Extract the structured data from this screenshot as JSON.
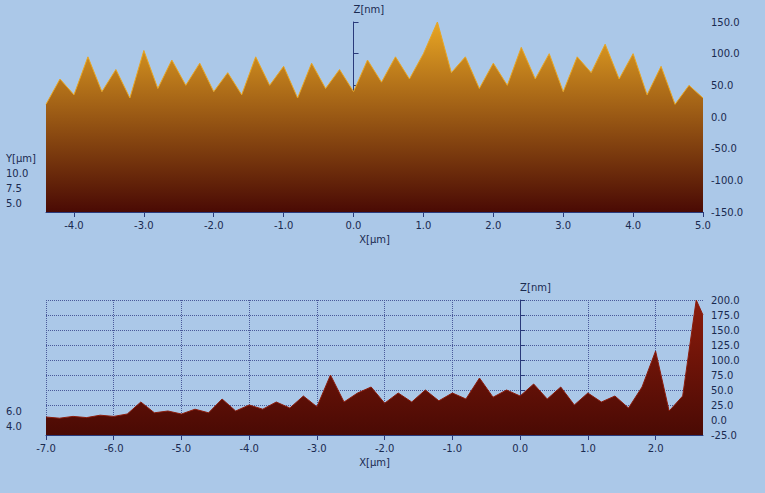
{
  "chart_data": [
    {
      "type": "area",
      "xlabel": "X[µm]",
      "ylabel": "Z[nm]",
      "depth_label": "Y[µm]",
      "depth_ticks": [
        {
          "value": 5,
          "label": "5.0"
        },
        {
          "value": 7.5,
          "label": "7.5"
        },
        {
          "value": 10,
          "label": "10.0"
        }
      ],
      "color": "#e8a624",
      "grid": false,
      "x": [
        -4.4,
        -4.2,
        -4.0,
        -3.8,
        -3.6,
        -3.4,
        -3.2,
        -3.0,
        -2.8,
        -2.6,
        -2.4,
        -2.2,
        -2.0,
        -1.8,
        -1.6,
        -1.4,
        -1.2,
        -1.0,
        -0.8,
        -0.6,
        -0.4,
        -0.2,
        0.0,
        0.2,
        0.4,
        0.6,
        0.8,
        1.0,
        1.2,
        1.4,
        1.6,
        1.8,
        2.0,
        2.2,
        2.4,
        2.6,
        2.8,
        3.0,
        3.2,
        3.4,
        3.6,
        3.8,
        4.0,
        4.2,
        4.4,
        4.6,
        4.8,
        5.0
      ],
      "values": [
        20,
        60,
        35,
        95,
        40,
        75,
        30,
        105,
        45,
        90,
        50,
        85,
        40,
        70,
        35,
        95,
        50,
        80,
        30,
        85,
        45,
        75,
        40,
        90,
        55,
        95,
        60,
        100,
        150,
        70,
        95,
        45,
        85,
        50,
        110,
        60,
        100,
        40,
        95,
        70,
        115,
        60,
        100,
        35,
        80,
        20,
        50,
        30
      ],
      "xlim": [
        -4.4,
        5.0
      ],
      "xticks": [
        {
          "value": -4,
          "label": "-4.0"
        },
        {
          "value": -3,
          "label": "-3.0"
        },
        {
          "value": -2,
          "label": "-2.0"
        },
        {
          "value": -1,
          "label": "-1.0"
        },
        {
          "value": 0,
          "label": "0.0"
        },
        {
          "value": 1,
          "label": "1.0"
        },
        {
          "value": 2,
          "label": "2.0"
        },
        {
          "value": 3,
          "label": "3.0"
        },
        {
          "value": 4,
          "label": "4.0"
        },
        {
          "value": 5,
          "label": "5.0"
        }
      ],
      "ylim": [
        -150,
        150
      ],
      "yticks": [
        {
          "value": -150,
          "label": "-150.0"
        },
        {
          "value": -100,
          "label": "-100.0"
        },
        {
          "value": -50,
          "label": "-50.0"
        },
        {
          "value": 0,
          "label": "0.0"
        },
        {
          "value": 50,
          "label": "50.0"
        },
        {
          "value": 100,
          "label": "100.0"
        },
        {
          "value": 150,
          "label": "150.0"
        }
      ]
    },
    {
      "type": "area",
      "xlabel": "X[µm]",
      "ylabel": "Z[nm]",
      "depth_ticks": [
        {
          "value": 4,
          "label": "4.0"
        },
        {
          "value": 6,
          "label": "6.0"
        }
      ],
      "color": "#8c1c0c",
      "grid": true,
      "x": [
        -7.0,
        -6.8,
        -6.6,
        -6.4,
        -6.2,
        -6.0,
        -5.8,
        -5.6,
        -5.4,
        -5.2,
        -5.0,
        -4.8,
        -4.6,
        -4.4,
        -4.2,
        -4.0,
        -3.8,
        -3.6,
        -3.4,
        -3.2,
        -3.0,
        -2.8,
        -2.6,
        -2.4,
        -2.2,
        -2.0,
        -1.8,
        -1.6,
        -1.4,
        -1.2,
        -1.0,
        -0.8,
        -0.6,
        -0.4,
        -0.2,
        0.0,
        0.2,
        0.4,
        0.6,
        0.8,
        1.0,
        1.2,
        1.4,
        1.6,
        1.8,
        2.0,
        2.2,
        2.4,
        2.6,
        2.7
      ],
      "values": [
        5,
        3,
        6,
        4,
        8,
        6,
        10,
        30,
        12,
        15,
        10,
        18,
        12,
        35,
        15,
        25,
        18,
        30,
        20,
        40,
        22,
        75,
        30,
        45,
        55,
        28,
        45,
        30,
        50,
        32,
        45,
        35,
        70,
        38,
        50,
        40,
        60,
        35,
        55,
        25,
        45,
        30,
        40,
        20,
        55,
        115,
        15,
        40,
        200,
        175
      ],
      "xlim": [
        -7.0,
        2.7
      ],
      "xticks": [
        {
          "value": -7,
          "label": "-7.0"
        },
        {
          "value": -6,
          "label": "-6.0"
        },
        {
          "value": -5,
          "label": "-5.0"
        },
        {
          "value": -4,
          "label": "-4.0"
        },
        {
          "value": -3,
          "label": "-3.0"
        },
        {
          "value": -2,
          "label": "-2.0"
        },
        {
          "value": -1,
          "label": "-1.0"
        },
        {
          "value": 0,
          "label": "0.0"
        },
        {
          "value": 1,
          "label": "1.0"
        },
        {
          "value": 2,
          "label": "2.0"
        }
      ],
      "ylim": [
        -25,
        200
      ],
      "yticks": [
        {
          "value": -25,
          "label": "-25.0"
        },
        {
          "value": 0,
          "label": "0.0"
        },
        {
          "value": 25,
          "label": "25.0"
        },
        {
          "value": 50,
          "label": "50.0"
        },
        {
          "value": 75,
          "label": "75.0"
        },
        {
          "value": 100,
          "label": "100.0"
        },
        {
          "value": 125,
          "label": "125.0"
        },
        {
          "value": 150,
          "label": "150.0"
        },
        {
          "value": 175,
          "label": "175.0"
        },
        {
          "value": 200,
          "label": "200.0"
        }
      ]
    }
  ]
}
